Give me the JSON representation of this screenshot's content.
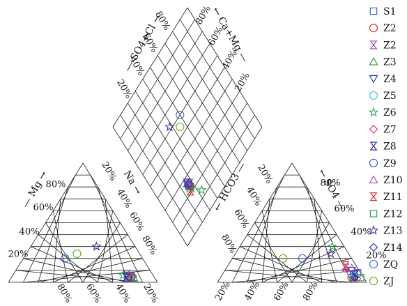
{
  "chart_data": {
    "type": "scatter",
    "subtype": "piper-diagram",
    "title": "",
    "grid": true,
    "legend_position": "right",
    "cation_triangle": {
      "axes": {
        "mg": "Mg",
        "na": "Na"
      },
      "tick_labels": [
        "20%",
        "40%",
        "60%",
        "80%"
      ]
    },
    "anion_triangle": {
      "axes": {
        "hco3": "HCO3",
        "so4": "SO4"
      },
      "tick_labels": [
        "20%",
        "40%",
        "60%",
        "80%"
      ]
    },
    "diamond": {
      "axes": {
        "so4_cl": "SO4+Cl",
        "ca_mg": "Ca+Mg"
      },
      "tick_labels": [
        "20%",
        "40%",
        "60%",
        "80%"
      ]
    },
    "series": [
      {
        "name": "S1",
        "marker": "square",
        "color": "#3355cc",
        "cation": {
          "mg": 4,
          "na": 78
        },
        "anion": {
          "hco3": 2,
          "so4": 8
        },
        "diamond": {
          "so4_cl": 26,
          "ca_mg": 24
        }
      },
      {
        "name": "Z2",
        "marker": "circle",
        "color": "#dd2222",
        "cation": {
          "mg": 4,
          "na": 80
        },
        "anion": {
          "hco3": 8,
          "so4": 4
        },
        "diamond": {
          "so4_cl": 27,
          "ca_mg": 24
        }
      },
      {
        "name": "Z2",
        "marker": "hourglass",
        "color": "#9944bb",
        "cation": {
          "mg": 7,
          "na": 76
        },
        "anion": {
          "hco3": 8,
          "so4": 12
        },
        "diamond": {
          "so4_cl": 28,
          "ca_mg": 25
        }
      },
      {
        "name": "Z3",
        "marker": "triangle-up",
        "color": "#229922",
        "cation": {
          "mg": 4,
          "na": 82
        },
        "anion": {
          "hco3": 7,
          "so4": 4
        },
        "diamond": {
          "so4_cl": 26,
          "ca_mg": 22
        }
      },
      {
        "name": "Z4",
        "marker": "triangle-down",
        "color": "#2233aa",
        "cation": {
          "mg": 6,
          "na": 79
        },
        "anion": {
          "hco3": 5,
          "so4": 10
        },
        "diamond": {
          "so4_cl": 26,
          "ca_mg": 26
        }
      },
      {
        "name": "Z5",
        "marker": "circle",
        "color": "#33bbcc",
        "cation": {
          "mg": 3,
          "na": 80
        },
        "anion": {
          "hco3": 6,
          "so4": 5
        },
        "diamond": {
          "so4_cl": 27,
          "ca_mg": 23
        }
      },
      {
        "name": "Z6",
        "marker": "star",
        "color": "#22aa55",
        "cation": {
          "mg": 6,
          "na": 74
        },
        "anion": {
          "hco3": 8,
          "so4": 30
        },
        "diamond": {
          "so4_cl": 33,
          "ca_mg": 14
        }
      },
      {
        "name": "Z7",
        "marker": "diamond",
        "color": "#dd2266",
        "cation": {
          "mg": 5,
          "na": 81
        },
        "anion": {
          "hco3": 5,
          "so4": 3
        },
        "diamond": {
          "so4_cl": 27,
          "ca_mg": 24
        }
      },
      {
        "name": "Z8",
        "marker": "hourglass",
        "color": "#222299",
        "cation": {
          "mg": 4,
          "na": 77
        },
        "anion": {
          "hco3": 5,
          "so4": 6
        },
        "diamond": {
          "so4_cl": 26,
          "ca_mg": 27
        }
      },
      {
        "name": "Z9",
        "marker": "circle",
        "color": "#3355cc",
        "cation": {
          "mg": 5,
          "na": 80
        },
        "anion": {
          "hco3": 5,
          "so4": 7
        },
        "diamond": {
          "so4_cl": 26,
          "ca_mg": 25
        }
      },
      {
        "name": "Z10",
        "marker": "triangle-up",
        "color": "#9944bb",
        "cation": {
          "mg": 3,
          "na": 79
        },
        "anion": {
          "hco3": 4,
          "so4": 12
        },
        "diamond": {
          "so4_cl": 27,
          "ca_mg": 26
        }
      },
      {
        "name": "Z11",
        "marker": "hourglass",
        "color": "#dd2222",
        "cation": {
          "mg": 4,
          "na": 80
        },
        "anion": {
          "hco3": 7,
          "so4": 14
        },
        "diamond": {
          "so4_cl": 25,
          "ca_mg": 21
        }
      },
      {
        "name": "Z12",
        "marker": "square",
        "color": "#229944",
        "cation": {
          "mg": 3,
          "na": 81
        },
        "anion": {
          "hco3": 2,
          "so4": 4
        },
        "diamond": {
          "so4_cl": 27,
          "ca_mg": 23
        }
      },
      {
        "name": "Z13",
        "marker": "star",
        "color": "#333399",
        "cation": {
          "mg": 30,
          "na": 44
        },
        "anion": {
          "hco3": 12,
          "so4": 24
        },
        "diamond": {
          "so4_cl": 38,
          "ca_mg": 62
        }
      },
      {
        "name": "Z14",
        "marker": "diamond",
        "color": "#2233aa",
        "cation": {
          "mg": 4,
          "na": 79
        },
        "anion": {
          "hco3": 6,
          "so4": 4
        },
        "diamond": {
          "so4_cl": 27,
          "ca_mg": 25
        }
      },
      {
        "name": "ZQ",
        "marker": "circle",
        "color": "#3366cc",
        "cation": {
          "mg": 20,
          "na": 28
        },
        "anion": {
          "hco3": 33,
          "so4": 20
        },
        "diamond": {
          "so4_cl": 50,
          "ca_mg": 60
        }
      },
      {
        "name": "ZJ",
        "marker": "circle",
        "color": "#66aa22",
        "cation": {
          "mg": 24,
          "na": 34
        },
        "anion": {
          "hco3": 46,
          "so4": 20
        },
        "diamond": {
          "so4_cl": 45,
          "ca_mg": 55
        }
      }
    ]
  }
}
